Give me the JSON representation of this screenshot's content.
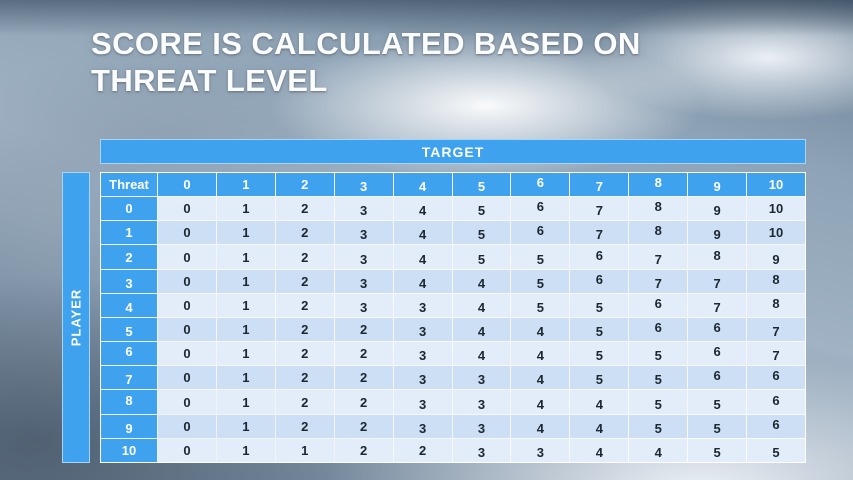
{
  "slide": {
    "title": "SCORE IS CALCULATED BASED ON THREAT LEVEL"
  },
  "matrix": {
    "target_label": "TARGET",
    "player_label": "PLAYER",
    "corner_label": "Threat",
    "column_headers": [
      "0",
      "1",
      "2",
      "3",
      "4",
      "5",
      "6",
      "7",
      "8",
      "9",
      "10"
    ],
    "rows": [
      {
        "label": "0",
        "values": [
          "0",
          "1",
          "2",
          "3",
          "4",
          "5",
          "6",
          "7",
          "8",
          "9",
          "10"
        ]
      },
      {
        "label": "1",
        "values": [
          "0",
          "1",
          "2",
          "3",
          "4",
          "5",
          "6",
          "7",
          "8",
          "9",
          "10"
        ]
      },
      {
        "label": "2",
        "values": [
          "0",
          "1",
          "2",
          "3",
          "4",
          "5",
          "5",
          "6",
          "7",
          "8",
          "9"
        ]
      },
      {
        "label": "3",
        "values": [
          "0",
          "1",
          "2",
          "3",
          "4",
          "4",
          "5",
          "6",
          "7",
          "7",
          "8"
        ]
      },
      {
        "label": "4",
        "values": [
          "0",
          "1",
          "2",
          "3",
          "3",
          "4",
          "5",
          "5",
          "6",
          "7",
          "8"
        ]
      },
      {
        "label": "5",
        "values": [
          "0",
          "1",
          "2",
          "2",
          "3",
          "4",
          "4",
          "5",
          "6",
          "6",
          "7"
        ]
      },
      {
        "label": "6",
        "values": [
          "0",
          "1",
          "2",
          "2",
          "3",
          "4",
          "4",
          "5",
          "5",
          "6",
          "7"
        ]
      },
      {
        "label": "7",
        "values": [
          "0",
          "1",
          "2",
          "2",
          "3",
          "3",
          "4",
          "5",
          "5",
          "6",
          "6"
        ]
      },
      {
        "label": "8",
        "values": [
          "0",
          "1",
          "2",
          "2",
          "3",
          "3",
          "4",
          "4",
          "5",
          "5",
          "6"
        ]
      },
      {
        "label": "9",
        "values": [
          "0",
          "1",
          "2",
          "2",
          "3",
          "3",
          "4",
          "4",
          "5",
          "5",
          "6"
        ]
      },
      {
        "label": "10",
        "values": [
          "0",
          "1",
          "1",
          "2",
          "2",
          "3",
          "3",
          "4",
          "4",
          "5",
          "5"
        ]
      }
    ]
  },
  "colors": {
    "header_blue": "#3fa2ee",
    "band_light": "#e3edfa",
    "band_dark": "#cddff4",
    "title_text": "#fbfcfd"
  }
}
